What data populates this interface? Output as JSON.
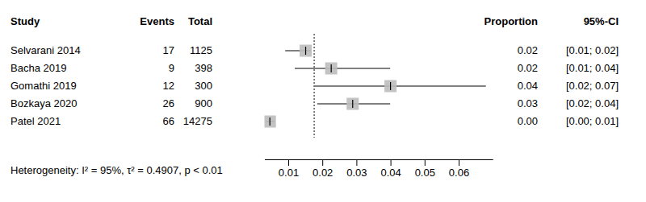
{
  "chart_data": {
    "type": "forest",
    "columns": {
      "study": "Study",
      "events": "Events",
      "total": "Total",
      "proportion": "Proportion",
      "ci": "95%-CI"
    },
    "categories": [
      "Selvarani 2014",
      "Bacha 2019",
      "Gomathi 2019",
      "Bozkaya 2020",
      "Patel 2021"
    ],
    "events": [
      17,
      9,
      12,
      26,
      66
    ],
    "totals": [
      1125,
      398,
      300,
      900,
      14275
    ],
    "values": [
      0.0151,
      0.0226,
      0.04,
      0.0289,
      0.0046
    ],
    "value_labels": [
      "0.02",
      "0.02",
      "0.04",
      "0.03",
      "0.00"
    ],
    "lower": [
      0.0091,
      0.0119,
      0.0178,
      0.0185,
      0.0036
    ],
    "upper": [
      0.0166,
      0.0399,
      0.068,
      0.0399,
      0.0059
    ],
    "ci_labels": [
      "[0.01; 0.02]",
      "[0.01; 0.04]",
      "[0.02; 0.07]",
      "[0.02; 0.04]",
      "[0.00; 0.01]"
    ],
    "pooled": 0.0176,
    "xlim": [
      0.003,
      0.07
    ],
    "xticks": [
      0.01,
      0.02,
      0.03,
      0.04,
      0.05,
      0.06
    ],
    "heterogeneity": "Heterogeneity: I² = 95%, τ² = 0.4907, p < 0.01"
  }
}
